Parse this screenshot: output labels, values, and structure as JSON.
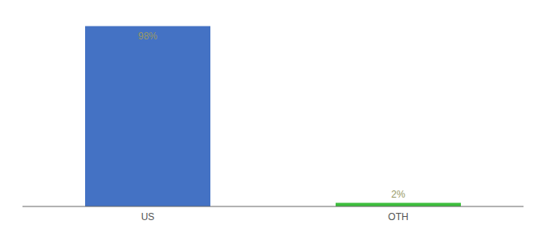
{
  "chart_data": {
    "type": "bar",
    "categories": [
      "US",
      "OTH"
    ],
    "values": [
      98,
      2
    ],
    "value_labels": [
      "98%",
      "2%"
    ],
    "colors": [
      "#4472C4",
      "#3DBE3D"
    ],
    "ylim": [
      0,
      100
    ],
    "data_labels": true,
    "tick_labels": "x",
    "grid": false
  }
}
